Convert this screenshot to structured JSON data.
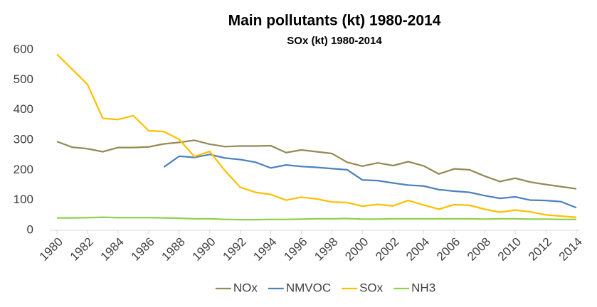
{
  "chart_data": {
    "type": "line",
    "title": "Main pollutants (kt) 1980-2014",
    "subtitle": "SOx (kt) 1980-2014",
    "x": [
      1980,
      1981,
      1982,
      1983,
      1984,
      1985,
      1986,
      1987,
      1988,
      1989,
      1990,
      1991,
      1992,
      1993,
      1994,
      1995,
      1996,
      1997,
      1998,
      1999,
      2000,
      2001,
      2002,
      2003,
      2004,
      2005,
      2006,
      2007,
      2008,
      2009,
      2010,
      2011,
      2012,
      2013,
      2014
    ],
    "series": [
      {
        "name": "NOx",
        "color": "#948a54",
        "values": [
          295,
          276,
          271,
          261,
          275,
          275,
          277,
          287,
          292,
          299,
          286,
          278,
          280,
          280,
          281,
          258,
          267,
          261,
          255,
          226,
          213,
          224,
          215,
          228,
          214,
          187,
          204,
          201,
          180,
          162,
          173,
          160,
          152,
          145,
          138
        ]
      },
      {
        "name": "NMVOC",
        "color": "#4f81bd",
        "values": [
          null,
          null,
          null,
          null,
          null,
          null,
          null,
          210,
          246,
          242,
          252,
          240,
          235,
          226,
          207,
          217,
          212,
          209,
          205,
          201,
          167,
          165,
          157,
          150,
          147,
          135,
          130,
          126,
          115,
          106,
          111,
          100,
          99,
          95,
          75
        ]
      },
      {
        "name": "SOx",
        "color": "#ffc000",
        "values": [
          585,
          535,
          485,
          372,
          368,
          381,
          331,
          328,
          302,
          245,
          262,
          198,
          143,
          126,
          119,
          100,
          110,
          104,
          94,
          92,
          80,
          86,
          81,
          99,
          84,
          70,
          85,
          83,
          70,
          60,
          67,
          61,
          51,
          47,
          43
        ]
      },
      {
        "name": "NH3",
        "color": "#92d050",
        "values": [
          41,
          41,
          42,
          43,
          42,
          42,
          42,
          41,
          40,
          38,
          38,
          36,
          35,
          35,
          36,
          36,
          37,
          38,
          38,
          39,
          37,
          37,
          38,
          38,
          38,
          38,
          38,
          38,
          37,
          38,
          38,
          37,
          37,
          36,
          36
        ]
      }
    ],
    "xlim": [
      1980,
      2014
    ],
    "xticks": [
      1980,
      1982,
      1984,
      1986,
      1988,
      1990,
      1992,
      1994,
      1996,
      1998,
      2000,
      2002,
      2004,
      2006,
      2008,
      2010,
      2012,
      2014
    ],
    "ylim": [
      0,
      600
    ],
    "yticks": [
      0,
      100,
      200,
      300,
      400,
      500,
      600
    ],
    "grid": false,
    "legend": "bottom"
  }
}
